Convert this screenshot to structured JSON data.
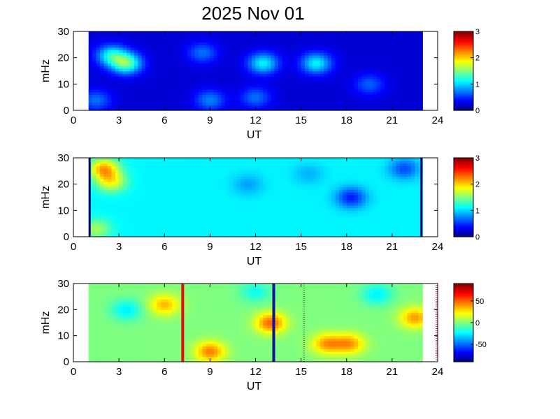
{
  "title": "2025 Nov 01",
  "chart_data": [
    {
      "type": "heatmap",
      "ylabel": "mHz",
      "xlabel": "UT",
      "xlim": [
        0,
        24
      ],
      "ylim": [
        0,
        30
      ],
      "xticks": [
        "0",
        "3",
        "6",
        "9",
        "12",
        "15",
        "18",
        "21",
        "24"
      ],
      "yticks": [
        "0",
        "10",
        "20",
        "30"
      ],
      "data_x_range": [
        1,
        23
      ],
      "colorbar": {
        "range": [
          0,
          3
        ],
        "ticks": [
          "0",
          "1",
          "2",
          "3"
        ],
        "colormap": "jet"
      },
      "background_level": 0.25,
      "features": [
        {
          "ut": 3.5,
          "mhz": 18,
          "level": 1.4
        },
        {
          "ut": 2.5,
          "mhz": 21,
          "level": 1.1
        },
        {
          "ut": 1.5,
          "mhz": 4,
          "level": 0.7
        },
        {
          "ut": 9,
          "mhz": 4,
          "level": 0.75
        },
        {
          "ut": 12.5,
          "mhz": 18,
          "level": 1.1
        },
        {
          "ut": 16,
          "mhz": 18,
          "level": 1.1
        },
        {
          "ut": 8.5,
          "mhz": 22,
          "level": 0.7
        },
        {
          "ut": 12,
          "mhz": 5,
          "level": 0.7
        },
        {
          "ut": 19.5,
          "mhz": 10,
          "level": 0.65
        }
      ]
    },
    {
      "type": "heatmap",
      "ylabel": "mHz",
      "xlabel": "UT",
      "xlim": [
        0,
        24
      ],
      "ylim": [
        0,
        30
      ],
      "xticks": [
        "0",
        "3",
        "6",
        "9",
        "12",
        "15",
        "18",
        "21",
        "24"
      ],
      "yticks": [
        "0",
        "10",
        "20",
        "30"
      ],
      "data_x_range": [
        1,
        23
      ],
      "colorbar": {
        "range": [
          0,
          3
        ],
        "ticks": [
          "0",
          "1",
          "2",
          "3"
        ],
        "colormap": "jet"
      },
      "background_level": 1.1,
      "features": [
        {
          "ut": 2,
          "mhz": 26,
          "level": 2.1
        },
        {
          "ut": 2.5,
          "mhz": 21,
          "level": 1.8
        },
        {
          "ut": 1.5,
          "mhz": 3,
          "level": 1.6
        },
        {
          "ut": 18.3,
          "mhz": 15,
          "level": 0.45
        },
        {
          "ut": 21.8,
          "mhz": 26,
          "level": 0.6
        },
        {
          "ut": 11.5,
          "mhz": 20,
          "level": 0.85
        },
        {
          "ut": 15.5,
          "mhz": 24,
          "level": 0.9
        }
      ]
    },
    {
      "type": "heatmap",
      "ylabel": "mHz",
      "xlabel": "UT",
      "xlim": [
        0,
        24
      ],
      "ylim": [
        0,
        30
      ],
      "xticks": [
        "0",
        "3",
        "6",
        "9",
        "12",
        "15",
        "18",
        "21",
        "24"
      ],
      "yticks": [
        "0",
        "10",
        "20",
        "30"
      ],
      "data_x_range": [
        1,
        23
      ],
      "colorbar": {
        "range": [
          -90,
          90
        ],
        "ticks": [
          "50",
          "0",
          "-50"
        ],
        "colormap": "jet"
      },
      "background_level": 0,
      "features": [
        {
          "ut": 6,
          "mhz": 22,
          "level": 35
        },
        {
          "ut": 9,
          "mhz": 4,
          "level": 45
        },
        {
          "ut": 13,
          "mhz": 15,
          "level": 50
        },
        {
          "ut": 16.7,
          "mhz": 7,
          "level": 40
        },
        {
          "ut": 18.2,
          "mhz": 7,
          "level": 40
        },
        {
          "ut": 22.5,
          "mhz": 17,
          "level": 40
        },
        {
          "ut": 3.5,
          "mhz": 20,
          "level": -25
        },
        {
          "ut": 20,
          "mhz": 26,
          "level": -25
        },
        {
          "ut": 12,
          "mhz": 27,
          "level": -20
        }
      ],
      "markers": [
        {
          "ut": 7.2,
          "color": "#e01010",
          "style": "solid"
        },
        {
          "ut": 13.2,
          "color": "#10109a",
          "style": "solid"
        },
        {
          "ut": 15.2,
          "color": "#000000",
          "style": "dotted"
        }
      ]
    }
  ]
}
